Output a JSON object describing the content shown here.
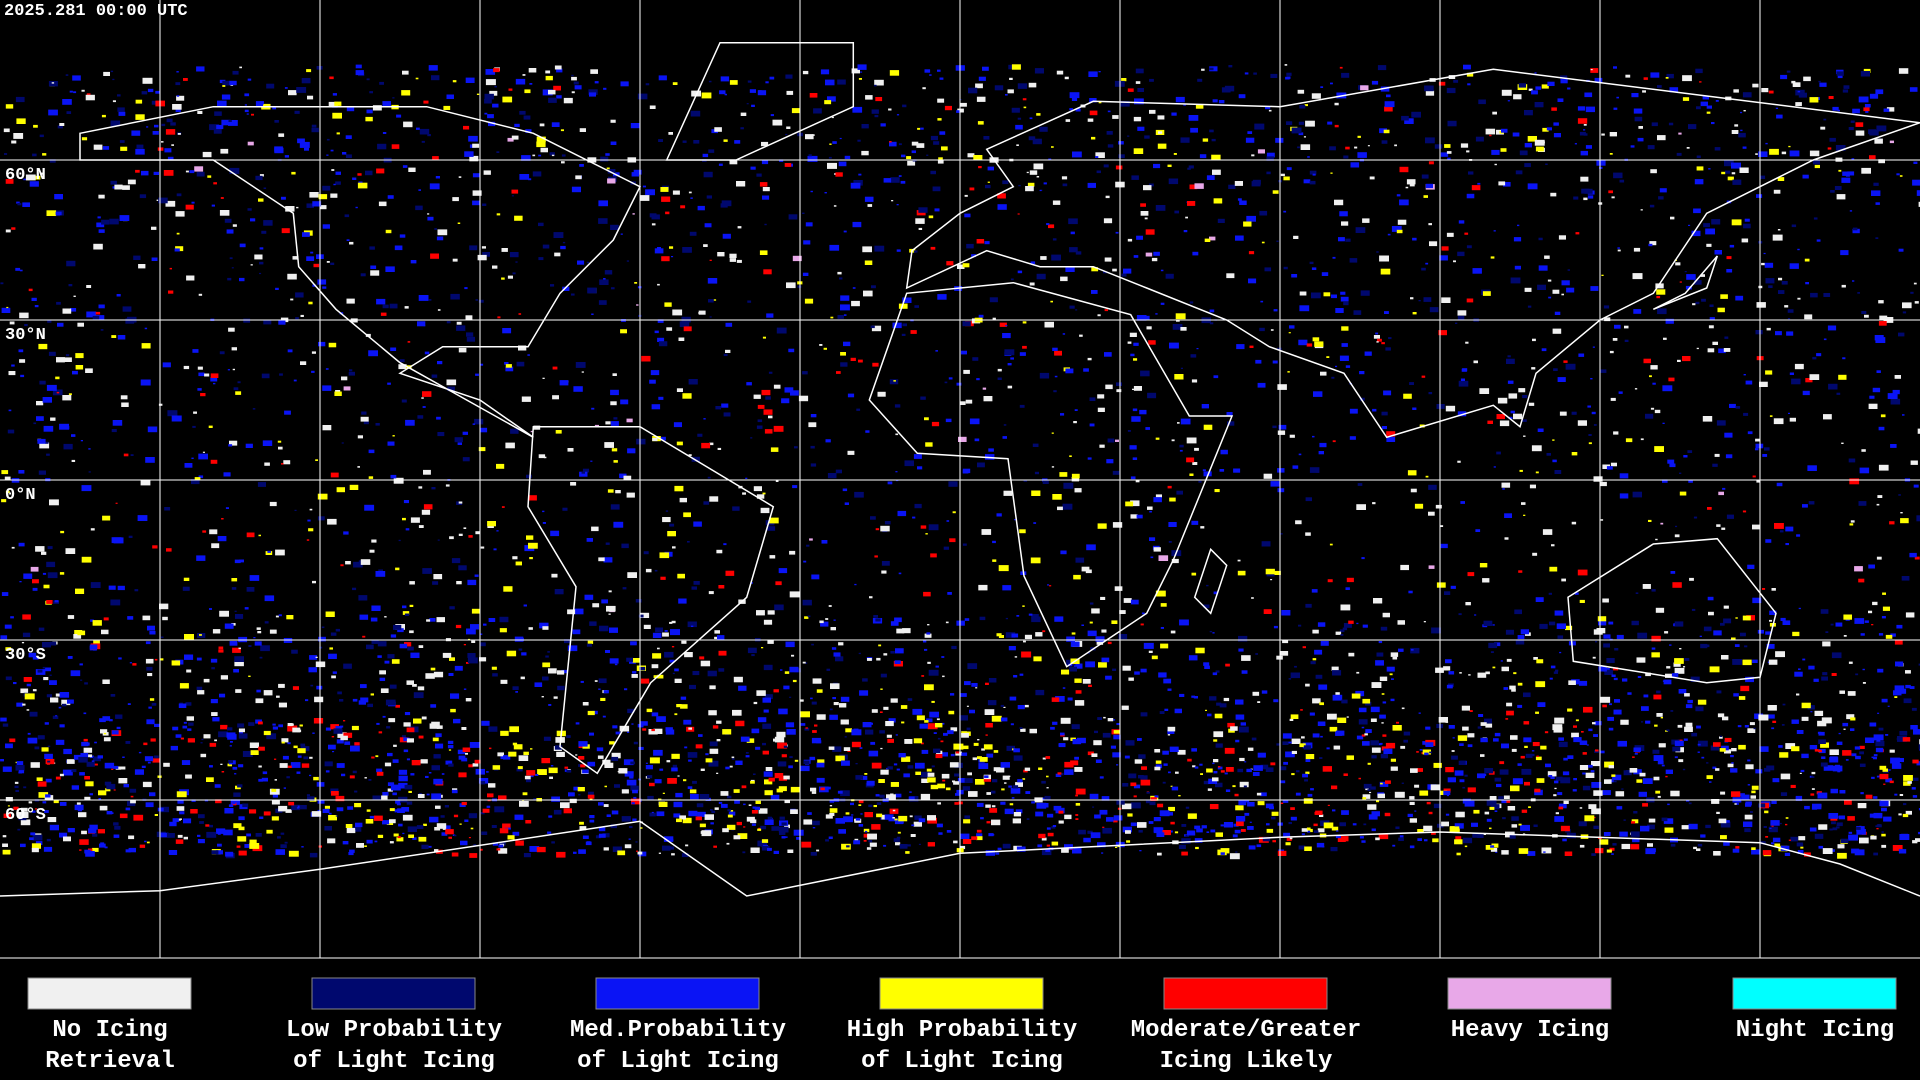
{
  "timestamp": "2025.281 00:00 UTC",
  "latitude_labels": [
    "60°N",
    "30°N",
    "0°N",
    "30°S",
    "60°S"
  ],
  "legend": [
    {
      "label": [
        "No Icing",
        "Retrieval"
      ],
      "color": "#f0f0f0"
    },
    {
      "label": [
        "Low Probability",
        "of Light Icing"
      ],
      "color": "#00086e"
    },
    {
      "label": [
        "Med.Probability",
        "of Light Icing"
      ],
      "color": "#0a14f5"
    },
    {
      "label": [
        "High Probability",
        "of Light Icing"
      ],
      "color": "#ffff00"
    },
    {
      "label": [
        "Moderate/Greater",
        "Icing Likely"
      ],
      "color": "#ff0000"
    },
    {
      "label": [
        "Heavy Icing"
      ],
      "color": "#e8a8e8"
    },
    {
      "label": [
        "Night Icing"
      ],
      "color": "#00ffff"
    }
  ]
}
